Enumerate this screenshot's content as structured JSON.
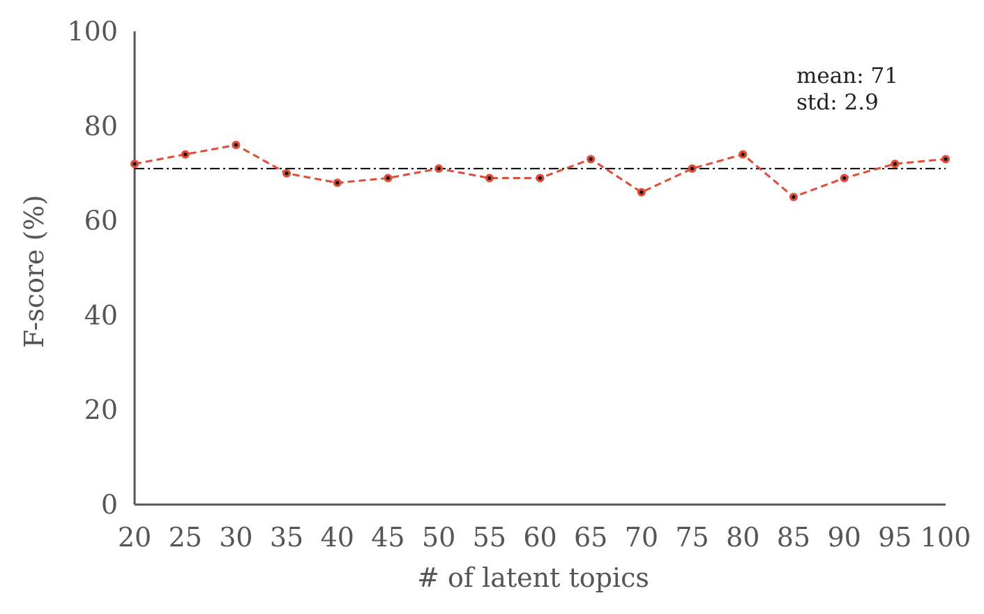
{
  "chart_data": {
    "type": "line",
    "xlabel": "# of latent topics",
    "ylabel": "F-score (%)",
    "ylim": [
      0,
      100
    ],
    "xlim": [
      20,
      100
    ],
    "x": [
      20,
      25,
      30,
      35,
      40,
      45,
      50,
      55,
      60,
      65,
      70,
      75,
      80,
      85,
      90,
      95,
      100
    ],
    "x_tick_labels": [
      "20",
      "25",
      "30",
      "35",
      "40",
      "45",
      "50",
      "55",
      "60",
      "65",
      "70",
      "75",
      "80",
      "85",
      "90",
      "95",
      "100"
    ],
    "y_ticks": [
      0,
      20,
      40,
      60,
      80,
      100
    ],
    "y_tick_labels": [
      "0",
      "20",
      "40",
      "60",
      "80",
      "100"
    ],
    "series": [
      {
        "values": [
          72,
          74,
          76,
          70,
          68,
          69,
          71,
          69,
          69,
          73,
          66,
          71,
          74,
          65,
          69,
          72,
          73
        ],
        "color": "#E04B35",
        "style": "dashed",
        "marker": "circle"
      }
    ],
    "reference_line": {
      "y": 71,
      "color": "#000000",
      "style": "dash-dot"
    },
    "annotation": {
      "line1": "mean: 71",
      "line2": "std: 2.9"
    },
    "grid": false,
    "axis_color": "#555555"
  }
}
